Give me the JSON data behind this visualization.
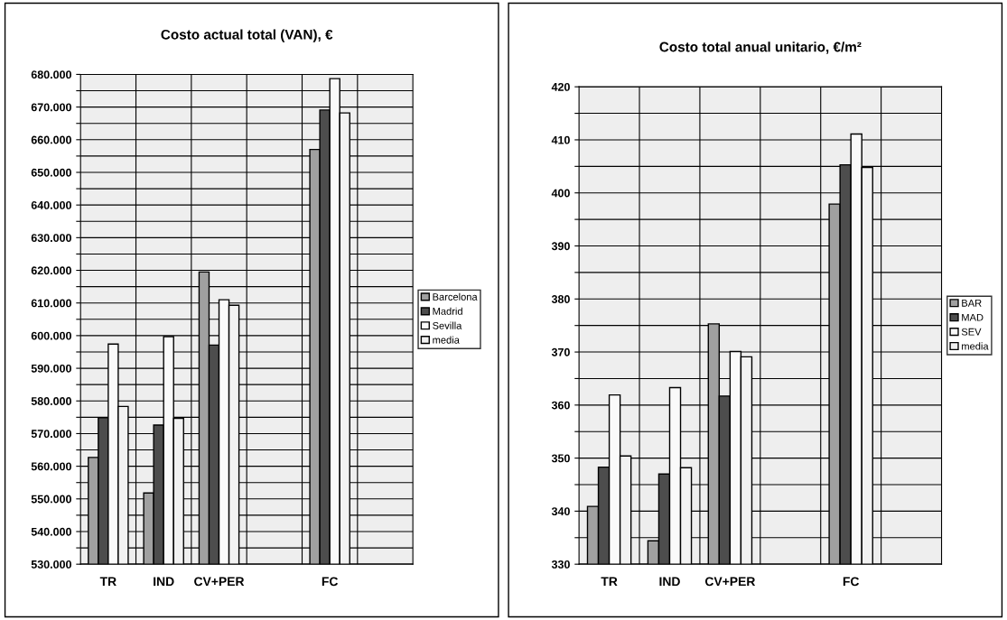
{
  "chart_data": [
    {
      "type": "bar",
      "title": "Costo actual total (VAN), €",
      "categories": [
        "TR",
        "IND",
        "CV+PER",
        null,
        "FC",
        null
      ],
      "series": [
        {
          "name": "Barcelona",
          "color": "#a0a0a0",
          "values": [
            562700,
            551800,
            619500,
            null,
            657000,
            null
          ]
        },
        {
          "name": "Madrid",
          "color": "#4d4d4d",
          "values": [
            574900,
            572600,
            597100,
            null,
            669100,
            null
          ]
        },
        {
          "name": "Sevilla",
          "color": "#fafafa",
          "values": [
            597400,
            599700,
            611000,
            null,
            678700,
            null
          ]
        },
        {
          "name": "media",
          "color": "#f2f2f2",
          "values": [
            578300,
            574700,
            609300,
            null,
            668200,
            null
          ]
        }
      ],
      "ylim": [
        530000,
        680000
      ],
      "yticks": [
        {
          "value": 530000,
          "label": "530.000"
        },
        {
          "value": 535000,
          "label": null
        },
        {
          "value": 540000,
          "label": "540.000"
        },
        {
          "value": 545000,
          "label": null
        },
        {
          "value": 550000,
          "label": "550.000"
        },
        {
          "value": 555000,
          "label": null
        },
        {
          "value": 560000,
          "label": "560.000"
        },
        {
          "value": 565000,
          "label": null
        },
        {
          "value": 570000,
          "label": "570.000"
        },
        {
          "value": 575000,
          "label": null
        },
        {
          "value": 580000,
          "label": "580.000"
        },
        {
          "value": 585000,
          "label": null
        },
        {
          "value": 590000,
          "label": "590.000"
        },
        {
          "value": 595000,
          "label": null
        },
        {
          "value": 600000,
          "label": "600.000"
        },
        {
          "value": 605000,
          "label": null
        },
        {
          "value": 610000,
          "label": "610.000"
        },
        {
          "value": 615000,
          "label": null
        },
        {
          "value": 620000,
          "label": "620.000"
        },
        {
          "value": 625000,
          "label": null
        },
        {
          "value": 630000,
          "label": "630.000"
        },
        {
          "value": 635000,
          "label": null
        },
        {
          "value": 640000,
          "label": "640.000"
        },
        {
          "value": 645000,
          "label": null
        },
        {
          "value": 650000,
          "label": "650.000"
        },
        {
          "value": 655000,
          "label": null
        },
        {
          "value": 660000,
          "label": "660.000"
        },
        {
          "value": 665000,
          "label": null
        },
        {
          "value": 670000,
          "label": "670.000"
        },
        {
          "value": 675000,
          "label": null
        },
        {
          "value": 680000,
          "label": "680.000"
        }
      ],
      "grid": true,
      "legend": "right"
    },
    {
      "type": "bar",
      "title": "Costo total anual unitario, €/m²",
      "categories": [
        "TR",
        "IND",
        "CV+PER",
        null,
        "FC",
        null
      ],
      "series": [
        {
          "name": "BAR",
          "color": "#a0a0a0",
          "values": [
            340.9,
            334.4,
            375.3,
            null,
            397.9,
            null
          ]
        },
        {
          "name": "MAD",
          "color": "#4d4d4d",
          "values": [
            348.3,
            347.0,
            361.7,
            null,
            405.3,
            null
          ]
        },
        {
          "name": "SEV",
          "color": "#fafafa",
          "values": [
            361.9,
            363.3,
            370.1,
            null,
            411.1,
            null
          ]
        },
        {
          "name": "media",
          "color": "#f2f2f2",
          "values": [
            350.4,
            348.2,
            369.1,
            null,
            404.8,
            null
          ]
        }
      ],
      "ylim": [
        330,
        420
      ],
      "yticks": [
        330,
        {
          "value": 335,
          "label": null
        },
        340,
        {
          "value": 345,
          "label": null
        },
        350,
        {
          "value": 355,
          "label": null
        },
        360,
        {
          "value": 365,
          "label": null
        },
        370,
        {
          "value": 375,
          "label": null
        },
        380,
        {
          "value": 385,
          "label": null
        },
        390,
        {
          "value": 395,
          "label": null
        },
        400,
        {
          "value": 405,
          "label": null
        },
        410,
        {
          "value": 415,
          "label": null
        },
        420
      ],
      "grid": true,
      "legend": "right"
    }
  ]
}
